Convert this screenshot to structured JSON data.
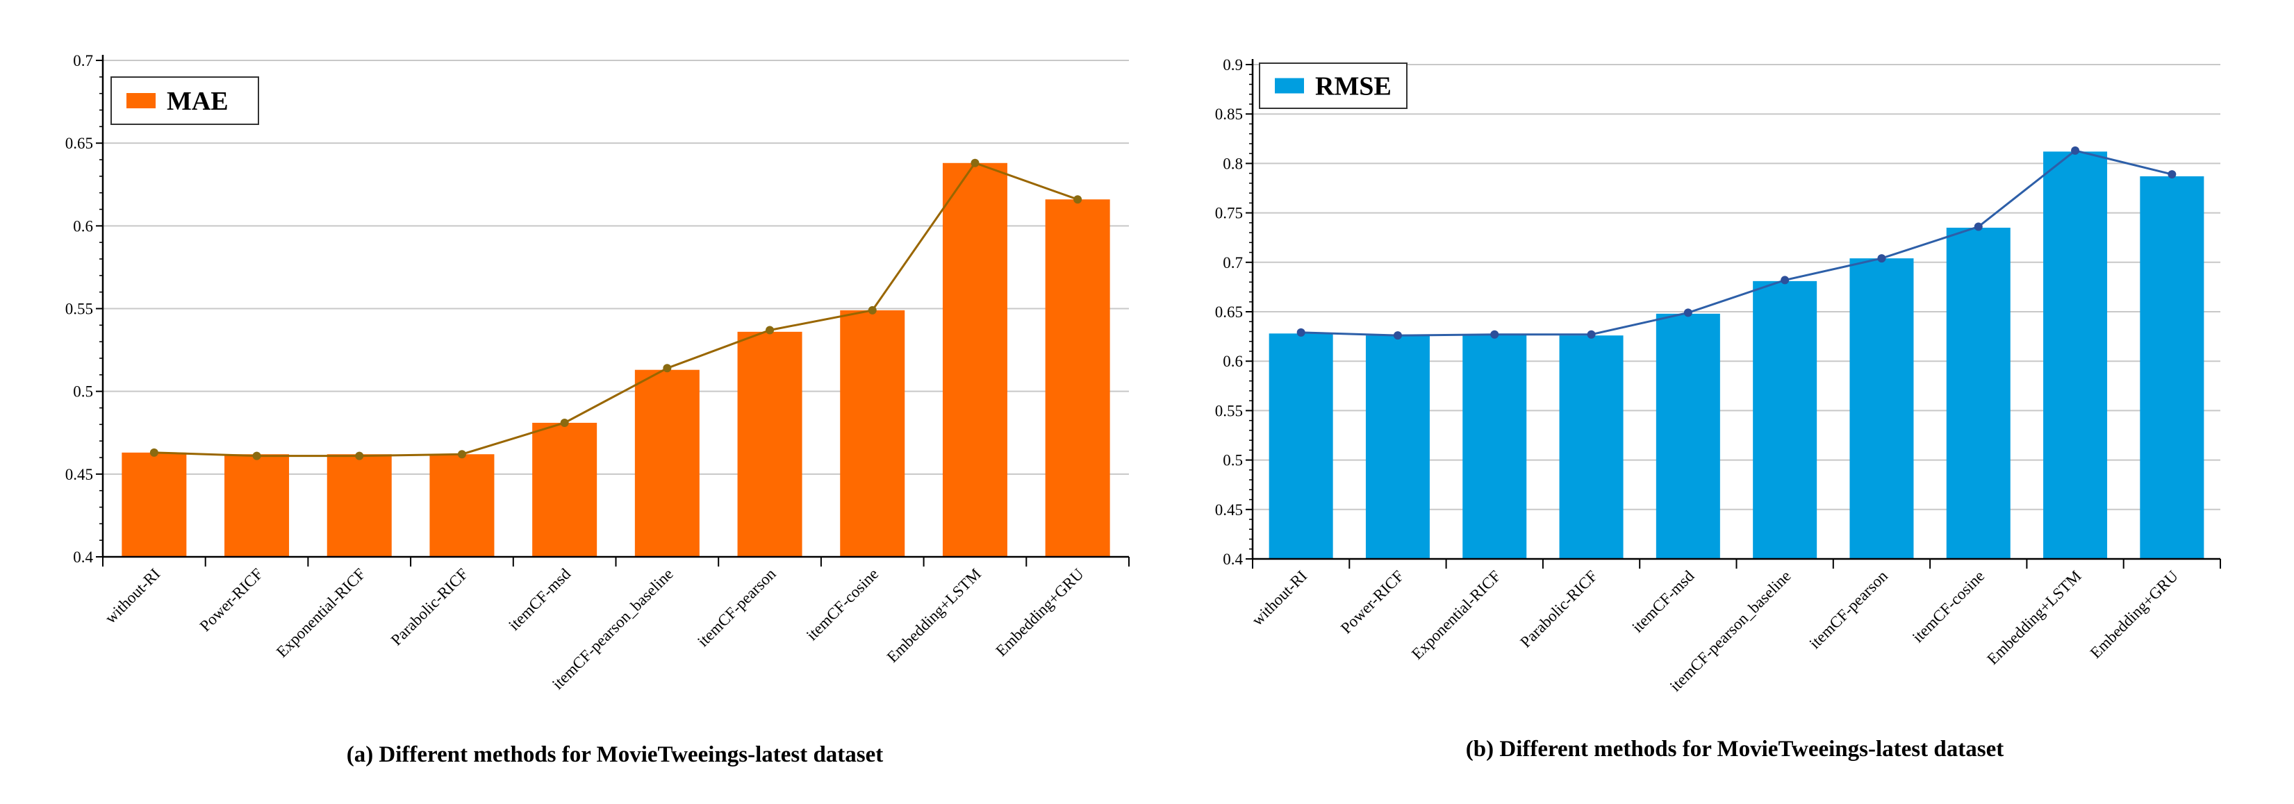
{
  "chart_data": [
    {
      "type": "bar",
      "title": "",
      "caption": "(a) Different methods for MovieTweeings-latest dataset",
      "legend": "MAE",
      "legend_position": "top-left",
      "categories": [
        "without-RI",
        "Power-RICF",
        "Exponential-RICF",
        "Parabolic-RICF",
        "itemCF-msd",
        "itemCF-pearson_baseline",
        "itemCF-pearson",
        "itemCF-cosine",
        "Embedding+LSTM",
        "Embedding+GRU"
      ],
      "values": [
        0.463,
        0.462,
        0.462,
        0.462,
        0.481,
        0.513,
        0.536,
        0.549,
        0.638,
        0.616
      ],
      "line_values": [
        0.463,
        0.461,
        0.461,
        0.462,
        0.481,
        0.514,
        0.537,
        0.549,
        0.638,
        0.616
      ],
      "yticks": [
        "0.4",
        "0.45",
        "0.5",
        "0.55",
        "0.6",
        "0.65",
        "0.7"
      ],
      "ylim": [
        0.4,
        0.7
      ],
      "xlabel": "",
      "ylabel": "",
      "grid": true,
      "colors": {
        "bar": "#ff6a00",
        "line": "#996600",
        "marker": "#8a6a10"
      }
    },
    {
      "type": "bar",
      "title": "",
      "caption": "(b) Different methods for MovieTweeings-latest dataset",
      "legend": "RMSE",
      "legend_position": "top-left",
      "categories": [
        "without-RI",
        "Power-RICF",
        "Exponential-RICF",
        "Parabolic-RICF",
        "itemCF-msd",
        "itemCF-pearson_baseline",
        "itemCF-pearson",
        "itemCF-cosine",
        "Embedding+LSTM",
        "Embedding+GRU"
      ],
      "values": [
        0.628,
        0.626,
        0.627,
        0.626,
        0.648,
        0.681,
        0.704,
        0.735,
        0.812,
        0.787
      ],
      "line_values": [
        0.629,
        0.626,
        0.627,
        0.627,
        0.649,
        0.682,
        0.704,
        0.736,
        0.813,
        0.789
      ],
      "yticks": [
        "0.4",
        "0.45",
        "0.5",
        "0.55",
        "0.6",
        "0.65",
        "0.7",
        "0.75",
        "0.8",
        "0.85",
        "0.9"
      ],
      "ylim": [
        0.4,
        0.9
      ],
      "xlabel": "",
      "ylabel": "",
      "grid": true,
      "colors": {
        "bar": "#009ee0",
        "line": "#2d5fa8",
        "marker": "#2d4f9a"
      }
    }
  ]
}
